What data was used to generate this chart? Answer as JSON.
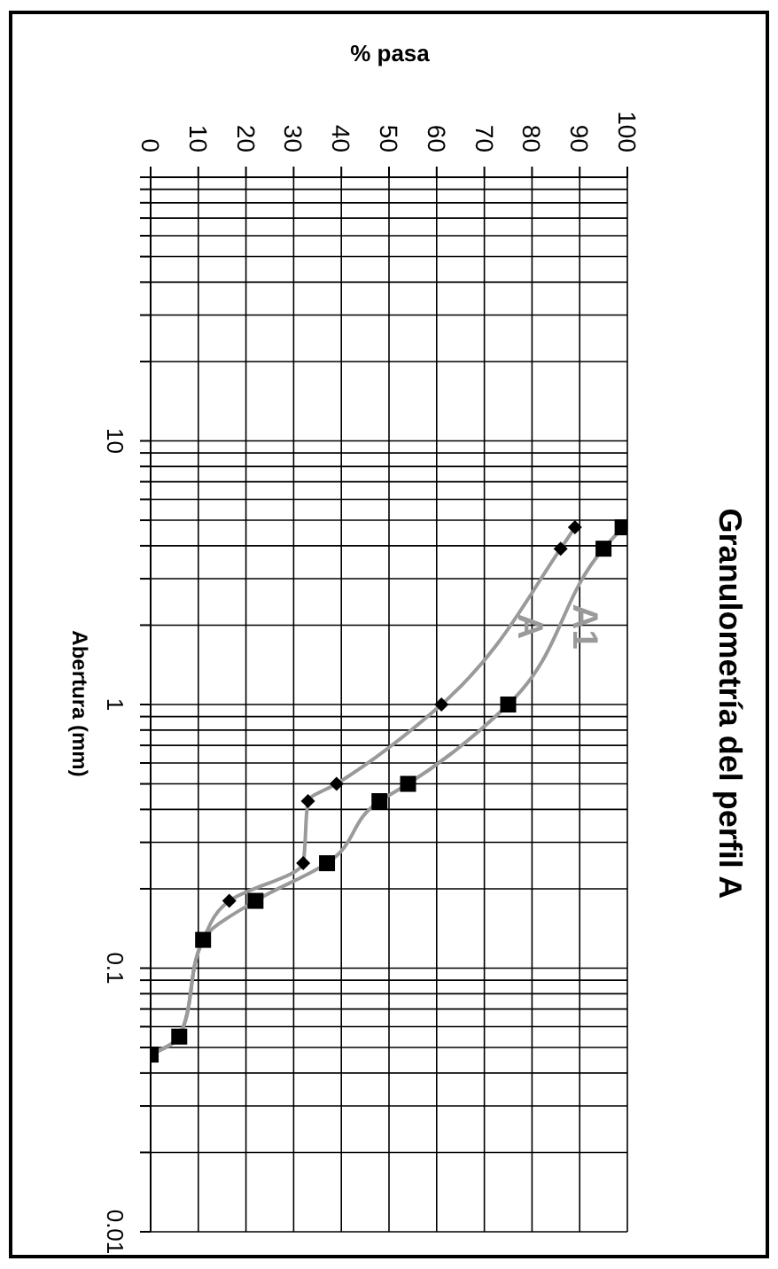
{
  "chart_data": {
    "type": "line",
    "title": "Granulometría del perfil A",
    "xlabel": "% pasa",
    "ylabel": "Abertura (mm)",
    "series": [
      {
        "name": "A",
        "color": "#9a9a9a",
        "marker": "diamond",
        "values": [
          4.7,
          3.9,
          1.0,
          0.5,
          0.43,
          0.25,
          0.18,
          0.128,
          0.055,
          0.047
        ],
        "x": [
          89,
          86,
          61,
          39,
          33,
          32,
          16.5,
          11,
          6,
          0
        ]
      },
      {
        "name": "A1",
        "color": "#9a9a9a",
        "marker": "square",
        "values": [
          4.7,
          3.9,
          1.0,
          0.5,
          0.43,
          0.25,
          0.18,
          0.128,
          0.055,
          0.047
        ],
        "x": [
          99,
          95,
          75,
          54,
          48,
          37,
          22,
          11,
          6,
          0
        ]
      }
    ],
    "log": "y",
    "ylim": [
      0.01,
      100
    ],
    "yticks": [
      {
        "value": 100,
        "label": null
      },
      {
        "value": 90,
        "label": null
      },
      {
        "value": 80,
        "label": null
      },
      {
        "value": 70,
        "label": null
      },
      {
        "value": 60,
        "label": null
      },
      {
        "value": 50,
        "label": null
      },
      {
        "value": 40,
        "label": null
      },
      {
        "value": 30,
        "label": null
      },
      {
        "value": 20,
        "label": null
      },
      10,
      {
        "value": 9,
        "label": null
      },
      {
        "value": 8,
        "label": null
      },
      {
        "value": 7,
        "label": null
      },
      {
        "value": 6,
        "label": null
      },
      {
        "value": 5,
        "label": null
      },
      {
        "value": 4,
        "label": null
      },
      {
        "value": 3,
        "label": null
      },
      {
        "value": 2,
        "label": null
      },
      1,
      {
        "value": 0.9,
        "label": null
      },
      {
        "value": 0.8,
        "label": null
      },
      {
        "value": 0.7,
        "label": null
      },
      {
        "value": 0.6,
        "label": null
      },
      {
        "value": 0.5,
        "label": null
      },
      {
        "value": 0.4,
        "label": null
      },
      {
        "value": 0.3,
        "label": null
      },
      {
        "value": 0.2,
        "label": null
      },
      0.1,
      {
        "value": 0.09,
        "label": null
      },
      {
        "value": 0.08,
        "label": null
      },
      {
        "value": 0.07,
        "label": null
      },
      {
        "value": 0.06,
        "label": null
      },
      {
        "value": 0.05,
        "label": null
      },
      {
        "value": 0.04,
        "label": null
      },
      {
        "value": 0.03,
        "label": null
      },
      {
        "value": 0.02,
        "label": null
      },
      0.01
    ],
    "xlim": [
      0,
      100
    ],
    "xticks": [
      0,
      10,
      20,
      30,
      40,
      50,
      60,
      70,
      80,
      90,
      100
    ],
    "grid": true,
    "legend": false
  }
}
